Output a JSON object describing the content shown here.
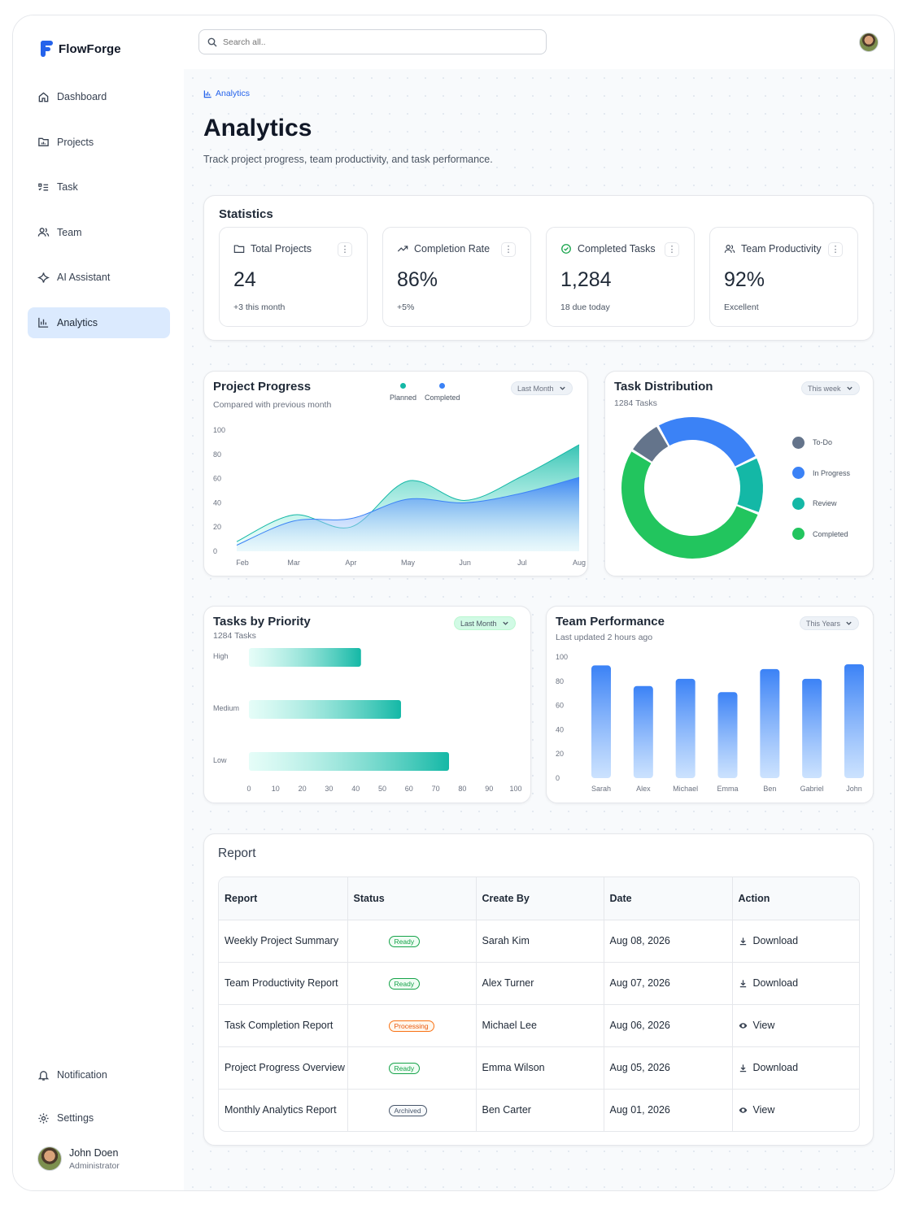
{
  "app": {
    "name": "FlowForge"
  },
  "search": {
    "placeholder": "Search all.."
  },
  "sidebar": {
    "items": [
      {
        "label": "Dashboard",
        "icon": "home-icon"
      },
      {
        "label": "Projects",
        "icon": "folder-icon"
      },
      {
        "label": "Task",
        "icon": "task-list-icon"
      },
      {
        "label": "Team",
        "icon": "team-icon"
      },
      {
        "label": "AI Assistant",
        "icon": "sparkle-icon"
      },
      {
        "label": "Analytics",
        "icon": "analytics-icon",
        "active": true
      }
    ],
    "bottom": [
      {
        "label": "Notification",
        "icon": "bell-icon"
      },
      {
        "label": "Settings",
        "icon": "gear-icon"
      }
    ],
    "user": {
      "name": "John Doen",
      "role": "Administrator"
    }
  },
  "breadcrumb": "Analytics",
  "page": {
    "title": "Analytics",
    "subtitle": "Track project progress, team productivity, and task performance."
  },
  "statistics": {
    "title": "Statistics",
    "cards": [
      {
        "label": "Total Projects",
        "value": "24",
        "note": "+3 this month",
        "icon": "folder-icon"
      },
      {
        "label": "Completion Rate",
        "value": "86%",
        "note": "+5%",
        "icon": "trend-up-icon"
      },
      {
        "label": "Completed Tasks",
        "value": "1,284",
        "note": "18 due today",
        "icon": "check-circle-icon"
      },
      {
        "label": "Team Productivity",
        "value": "92%",
        "note": "Excellent",
        "icon": "team-icon"
      }
    ]
  },
  "colors": {
    "accent": "#2563eb",
    "teal": "#14b8a6",
    "green": "#22c55e",
    "blue": "#3b82f6",
    "slate": "#64748b"
  },
  "project_progress": {
    "title": "Project Progress",
    "subtitle": "Compared with previous month",
    "filter": "Last Month",
    "legend": [
      "Planned",
      "Completed"
    ]
  },
  "task_distribution": {
    "title": "Task Distribution",
    "subtitle": "1284 Tasks",
    "filter": "This week",
    "legend": [
      "To-Do",
      "In Progress",
      "Review",
      "Completed"
    ]
  },
  "tasks_by_priority": {
    "title": "Tasks by Priority",
    "subtitle": "1284 Tasks",
    "filter": "Last Month"
  },
  "team_performance": {
    "title": "Team Performance",
    "subtitle": "Last updated 2 hours ago",
    "filter": "This Years"
  },
  "chart_data": [
    {
      "type": "area",
      "categories": [
        "Feb",
        "Mar",
        "Apr",
        "May",
        "Jun",
        "Jul",
        "Aug"
      ],
      "ylim": [
        0,
        100
      ],
      "yticks": [
        0,
        20,
        40,
        60,
        80,
        100
      ],
      "series": [
        {
          "name": "Planned",
          "color": "#14b8a6",
          "values": [
            8,
            30,
            20,
            58,
            42,
            62,
            88
          ]
        },
        {
          "name": "Completed",
          "color": "#3b82f6",
          "values": [
            5,
            25,
            27,
            43,
            40,
            48,
            61
          ]
        }
      ]
    },
    {
      "type": "pie",
      "categories": [
        "To-Do",
        "In Progress",
        "Review",
        "Completed"
      ],
      "values": [
        8,
        26,
        13,
        53
      ],
      "colors": [
        "#64748b",
        "#3b82f6",
        "#14b8a6",
        "#22c55e"
      ]
    },
    {
      "type": "bar",
      "orientation": "horizontal",
      "categories": [
        "High",
        "Medium",
        "Low"
      ],
      "ranges": [
        [
          0,
          42
        ],
        [
          0,
          57
        ],
        [
          0,
          75
        ]
      ],
      "xlim": [
        0,
        100
      ],
      "xticks": [
        0,
        10,
        20,
        30,
        40,
        50,
        60,
        70,
        80,
        90,
        100
      ]
    },
    {
      "type": "bar",
      "categories": [
        "Sarah",
        "Alex",
        "Michael",
        "Emma",
        "Ben",
        "Gabriel",
        "John"
      ],
      "values": [
        93,
        76,
        82,
        71,
        90,
        82,
        94
      ],
      "ylim": [
        0,
        100
      ],
      "yticks": [
        0,
        20,
        40,
        60,
        80,
        100
      ]
    }
  ],
  "report": {
    "title": "Report",
    "columns": [
      "Report",
      "Status",
      "Create By",
      "Date",
      "Action"
    ],
    "rows": [
      {
        "name": "Weekly Project Summary",
        "status": "Ready",
        "by": "Sarah Kim",
        "date": "Aug 08, 2026",
        "action": "Download"
      },
      {
        "name": "Team Productivity Report",
        "status": "Ready",
        "by": "Alex Turner",
        "date": "Aug 07, 2026",
        "action": "Download"
      },
      {
        "name": "Task Completion Report",
        "status": "Processing",
        "by": "Michael Lee",
        "date": "Aug 06, 2026",
        "action": "View"
      },
      {
        "name": "Project Progress Overview",
        "status": "Ready",
        "by": "Emma Wilson",
        "date": "Aug 05, 2026",
        "action": "Download"
      },
      {
        "name": "Monthly Analytics Report",
        "status": "Archived",
        "by": "Ben Carter",
        "date": "Aug 01, 2026",
        "action": "View"
      }
    ]
  }
}
